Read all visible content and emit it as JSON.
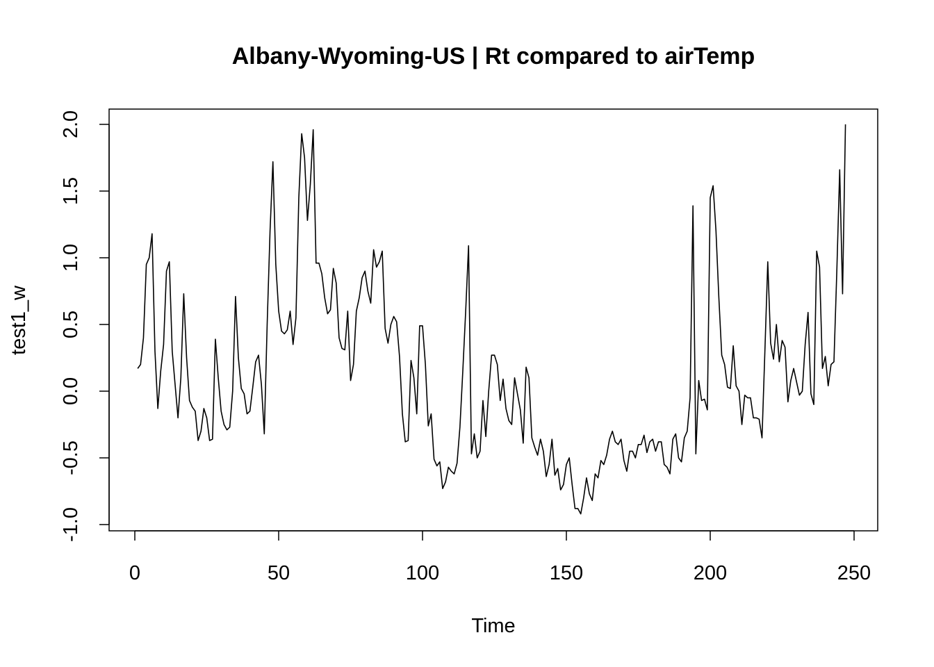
{
  "chart_data": {
    "type": "line",
    "title": "Albany-Wyoming-US | Rt compared to airTemp",
    "xlabel": "Time",
    "ylabel": "test1_w",
    "xlim": [
      0,
      250
    ],
    "ylim": [
      -1.0,
      2.0
    ],
    "x_ticks": [
      "0",
      "50",
      "100",
      "150",
      "200",
      "250"
    ],
    "y_ticks": [
      "-1.0",
      "-0.5",
      "0.0",
      "0.5",
      "1.0",
      "1.5",
      "2.0"
    ],
    "grid": false,
    "series": [
      {
        "values": [
          0.17,
          0.2,
          0.4,
          0.95,
          1.0,
          1.18,
          0.3,
          -0.13,
          0.15,
          0.35,
          0.9,
          0.97,
          0.3,
          0.05,
          -0.2,
          0.1,
          0.73,
          0.25,
          -0.07,
          -0.12,
          -0.15,
          -0.37,
          -0.3,
          -0.13,
          -0.2,
          -0.37,
          -0.36,
          0.39,
          0.1,
          -0.15,
          -0.25,
          -0.29,
          -0.27,
          0.0,
          0.71,
          0.25,
          0.02,
          -0.02,
          -0.17,
          -0.15,
          0.03,
          0.22,
          0.27,
          0.05,
          -0.32,
          0.5,
          1.2,
          1.72,
          0.95,
          0.6,
          0.45,
          0.43,
          0.46,
          0.6,
          0.35,
          0.55,
          1.45,
          1.93,
          1.75,
          1.28,
          1.55,
          1.96,
          0.96,
          0.96,
          0.88,
          0.7,
          0.58,
          0.61,
          0.92,
          0.81,
          0.4,
          0.32,
          0.31,
          0.6,
          0.08,
          0.2,
          0.6,
          0.7,
          0.85,
          0.9,
          0.75,
          0.66,
          1.06,
          0.93,
          0.97,
          1.05,
          0.47,
          0.36,
          0.5,
          0.56,
          0.52,
          0.26,
          -0.17,
          -0.38,
          -0.37,
          0.23,
          0.1,
          -0.17,
          0.49,
          0.49,
          0.2,
          -0.26,
          -0.17,
          -0.51,
          -0.56,
          -0.53,
          -0.73,
          -0.68,
          -0.57,
          -0.6,
          -0.62,
          -0.54,
          -0.27,
          0.15,
          0.6,
          1.09,
          -0.47,
          -0.32,
          -0.5,
          -0.45,
          -0.07,
          -0.34,
          0.0,
          0.27,
          0.27,
          0.2,
          -0.07,
          0.09,
          -0.13,
          -0.22,
          -0.25,
          0.1,
          -0.02,
          -0.14,
          -0.39,
          0.18,
          0.1,
          -0.35,
          -0.42,
          -0.48,
          -0.36,
          -0.45,
          -0.64,
          -0.55,
          -0.36,
          -0.63,
          -0.58,
          -0.74,
          -0.7,
          -0.55,
          -0.5,
          -0.7,
          -0.88,
          -0.88,
          -0.92,
          -0.8,
          -0.65,
          -0.77,
          -0.82,
          -0.62,
          -0.65,
          -0.52,
          -0.55,
          -0.48,
          -0.36,
          -0.3,
          -0.38,
          -0.4,
          -0.36,
          -0.52,
          -0.6,
          -0.45,
          -0.45,
          -0.5,
          -0.4,
          -0.4,
          -0.33,
          -0.46,
          -0.38,
          -0.36,
          -0.45,
          -0.38,
          -0.38,
          -0.55,
          -0.57,
          -0.62,
          -0.36,
          -0.32,
          -0.5,
          -0.53,
          -0.35,
          -0.3,
          -0.05,
          1.39,
          -0.47,
          0.08,
          -0.07,
          -0.06,
          -0.14,
          1.45,
          1.54,
          1.2,
          0.7,
          0.27,
          0.2,
          0.03,
          0.02,
          0.34,
          0.04,
          0.0,
          -0.25,
          -0.03,
          -0.05,
          -0.05,
          -0.2,
          -0.2,
          -0.21,
          -0.35,
          0.3,
          0.97,
          0.36,
          0.24,
          0.5,
          0.22,
          0.38,
          0.33,
          -0.08,
          0.08,
          0.17,
          0.07,
          -0.03,
          0.0,
          0.35,
          0.59,
          -0.02,
          -0.1,
          1.05,
          0.93,
          0.17,
          0.26,
          0.04,
          0.2,
          0.22,
          0.9,
          1.66,
          0.73,
          2.0
        ]
      }
    ]
  }
}
